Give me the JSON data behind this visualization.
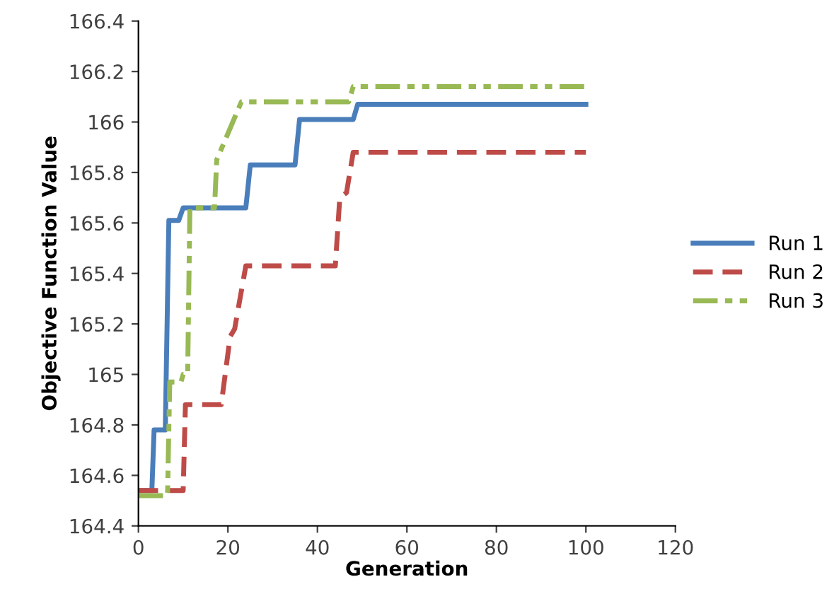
{
  "chart_data": {
    "type": "line",
    "xlabel": "Generation",
    "ylabel": "Objective Function Value",
    "xlim": [
      0,
      120
    ],
    "xticks": [
      0,
      20,
      40,
      60,
      80,
      100,
      120
    ],
    "ylim": [
      164.4,
      166.4
    ],
    "yticks": [
      164.4,
      164.6,
      164.8,
      165,
      165.2,
      165.4,
      165.6,
      165.8,
      166,
      166.2,
      166.4
    ],
    "grid": false,
    "legend": "right",
    "marker": "none",
    "series": [
      {
        "name": "Run 1",
        "color": "#4a7ebb",
        "line_style": "solid",
        "x": [
          0,
          3,
          3.5,
          6,
          6.8,
          9,
          10,
          24,
          25,
          35,
          36,
          48,
          49,
          100
        ],
        "values": [
          164.54,
          164.54,
          164.78,
          164.78,
          165.61,
          165.61,
          165.66,
          165.66,
          165.83,
          165.83,
          166.01,
          166.01,
          166.07,
          166.07
        ]
      },
      {
        "name": "Run 2",
        "color": "#be4b48",
        "line_style": "dashed",
        "x": [
          0,
          10,
          10.5,
          18.5,
          20.5,
          21.5,
          24,
          44,
          45,
          46.5,
          48,
          100
        ],
        "values": [
          164.54,
          164.54,
          164.88,
          164.88,
          165.15,
          165.18,
          165.43,
          165.43,
          165.7,
          165.72,
          165.88,
          165.88
        ]
      },
      {
        "name": "Run 3",
        "color": "#98b954",
        "line_style": "dashdot",
        "x": [
          0,
          6.5,
          7,
          9.5,
          10,
          11,
          11.5,
          17,
          17.5,
          23,
          47,
          48,
          100
        ],
        "values": [
          164.52,
          164.52,
          164.97,
          164.97,
          165.0,
          165.0,
          165.66,
          165.66,
          165.85,
          166.08,
          166.08,
          166.14,
          166.14
        ]
      }
    ]
  }
}
